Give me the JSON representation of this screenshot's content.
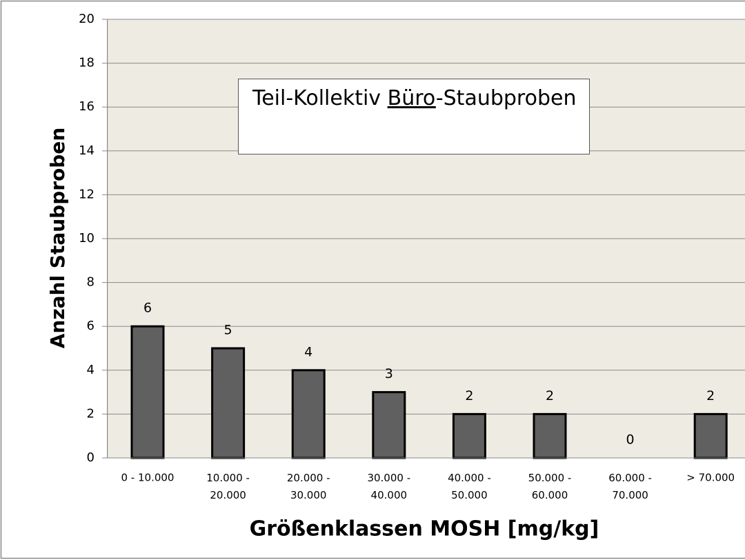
{
  "chart_data": {
    "type": "bar",
    "annotation": [
      "Teil-Kollektiv",
      "Büro",
      "-Staubproben"
    ],
    "x_label": "Größenklassen MOSH [mg/kg]",
    "y_label": "Anzahl Staubproben",
    "categories": [
      "0 - 10.000",
      "10.000 - 20.000",
      "20.000 - 30.000",
      "30.000 - 40.000",
      "40.000 - 50.000",
      "50.000 - 60.000",
      "60.000 - 70.000",
      "> 70.000"
    ],
    "values": [
      6,
      5,
      4,
      3,
      2,
      2,
      0,
      2
    ],
    "color": "#606060",
    "ylim": [
      0,
      20
    ],
    "yticks": [
      0,
      2,
      4,
      6,
      8,
      10,
      12,
      14,
      16,
      18,
      20
    ],
    "grid": true
  }
}
